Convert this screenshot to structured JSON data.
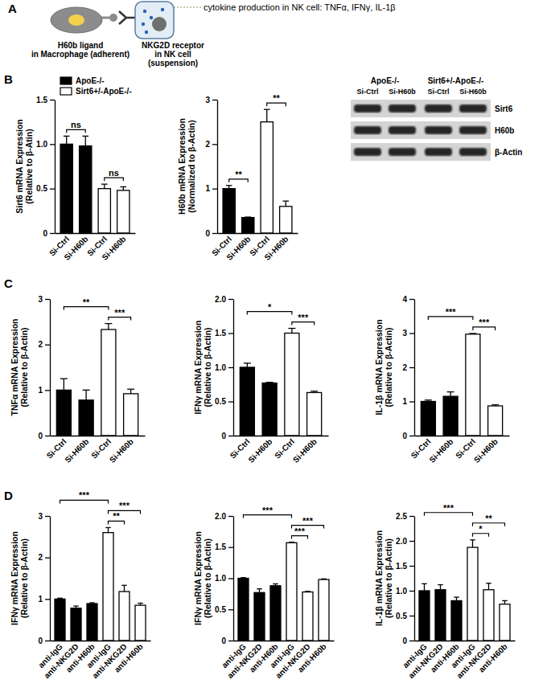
{
  "panel_labels": [
    "A",
    "B",
    "C",
    "D"
  ],
  "diagram": {
    "macrophage_label": [
      "H60b ligand",
      "in Macrophage (adherent)"
    ],
    "nk_label": [
      "NKG2D receptor",
      "in NK cell",
      "(suspension)"
    ],
    "cytokine_text": "cytokine production in NK cell: TNFα, IFNγ, IL-1β"
  },
  "legend_entries": [
    {
      "name": "ApoE-/-",
      "color": "#000000"
    },
    {
      "name": "Sirt6+/-ApoE-/-",
      "color": "#ffffff"
    }
  ],
  "blot": {
    "groups": [
      "ApoE-/-",
      "Sirt6+/-ApoE-/-"
    ],
    "lanes": [
      "Si-Ctrl",
      "Si-H60b",
      "Si-Ctrl",
      "Si-H60b"
    ],
    "rows": [
      "Sirt6",
      "H60b",
      "β-Actin"
    ]
  },
  "chart_data": [
    {
      "type": "bar",
      "y_label": [
        "Sirt6 mRNA Expression",
        "(Relative to β-Atin)"
      ],
      "categories": [
        "Si-Ctrl",
        "Si-H60b",
        "Si-Ctrl",
        "Si-H60b"
      ],
      "values": [
        1.0,
        0.98,
        0.5,
        0.48
      ],
      "errors": [
        0.09,
        0.11,
        0.05,
        0.04
      ],
      "colors": [
        "#000000",
        "#000000",
        "#ffffff",
        "#ffffff"
      ],
      "ylim": [
        0,
        1.5
      ],
      "yticks": [
        0,
        0.5,
        {
          "value": 1,
          "label": "1.0"
        },
        1.5
      ],
      "significance": [
        {
          "from": 0,
          "to": 1,
          "label": "ns"
        },
        {
          "from": 2,
          "to": 3,
          "label": "ns"
        }
      ]
    },
    {
      "type": "bar",
      "y_label": [
        "H60b mRNA Expression",
        "(Normalized to β-Actin)"
      ],
      "categories": [
        "Si-Ctrl",
        "Si-H60b",
        "Si-Ctrl",
        "Si-H60b"
      ],
      "values": [
        1.0,
        0.35,
        2.5,
        0.6
      ],
      "errors": [
        0.07,
        0.01,
        0.28,
        0.12
      ],
      "colors": [
        "#000000",
        "#000000",
        "#ffffff",
        "#ffffff"
      ],
      "ylim": [
        0,
        3
      ],
      "yticks": [
        0,
        1,
        2,
        3
      ],
      "significance": [
        {
          "from": 0,
          "to": 1,
          "label": "**"
        },
        {
          "from": 2,
          "to": 3,
          "label": "**"
        }
      ]
    },
    {
      "type": "bar",
      "y_label": [
        "TNFα mRNA Expression",
        "(Relative to β-Actin)"
      ],
      "categories": [
        "Si-Ctrl",
        "Si-H60b",
        "Si-Ctrl",
        "Si-H60b"
      ],
      "values": [
        1.0,
        0.78,
        2.33,
        0.92
      ],
      "errors": [
        0.25,
        0.22,
        0.13,
        0.1
      ],
      "colors": [
        "#000000",
        "#000000",
        "#ffffff",
        "#ffffff"
      ],
      "ylim": [
        0,
        3
      ],
      "yticks": [
        0,
        1,
        2,
        3
      ],
      "significance": [
        {
          "from": 0,
          "to": 2,
          "label": "**"
        },
        {
          "from": 2,
          "to": 3,
          "label": "***"
        }
      ]
    },
    {
      "type": "bar",
      "y_label": [
        "IFNγ mRNA Expression",
        "(Relative to β-Actin)"
      ],
      "categories": [
        "Si-Ctrl",
        "Si-H60b",
        "Si-Ctrl",
        "Si-H60b"
      ],
      "values": [
        1.0,
        0.77,
        1.5,
        0.63
      ],
      "errors": [
        0.06,
        0.01,
        0.07,
        0.02
      ],
      "colors": [
        "#000000",
        "#000000",
        "#ffffff",
        "#ffffff"
      ],
      "ylim": [
        0,
        2
      ],
      "yticks": [
        0,
        0.5,
        {
          "value": 1,
          "label": "1.0"
        },
        1.5,
        {
          "value": 2,
          "label": "2.0"
        }
      ],
      "significance": [
        {
          "from": 0,
          "to": 2,
          "label": "*"
        },
        {
          "from": 2,
          "to": 3,
          "label": "***"
        }
      ]
    },
    {
      "type": "bar",
      "y_label": [
        "IL-1β mRNA Expression",
        "(Relative to β-Actin)"
      ],
      "categories": [
        "Si-Ctrl",
        "Si-H60b",
        "Si-Ctrl",
        "Si-H60b"
      ],
      "values": [
        1.0,
        1.15,
        2.97,
        0.87
      ],
      "errors": [
        0.04,
        0.13,
        0.02,
        0.03
      ],
      "colors": [
        "#000000",
        "#000000",
        "#ffffff",
        "#ffffff"
      ],
      "ylim": [
        0,
        4
      ],
      "yticks": [
        0,
        1,
        2,
        3,
        4
      ],
      "significance": [
        {
          "from": 0,
          "to": 2,
          "label": "***"
        },
        {
          "from": 2,
          "to": 3,
          "label": "***"
        }
      ]
    },
    {
      "type": "bar",
      "y_label": [
        "IFNγ mRNA Expression",
        "(Relative to β-Actin)"
      ],
      "categories": [
        "anti-IgG",
        "anti-NKG2D",
        "anti-H60b",
        "anti-IgG",
        "anti-NKG2D",
        "anti-H60b"
      ],
      "values": [
        1.0,
        0.78,
        0.89,
        2.6,
        1.18,
        0.85
      ],
      "errors": [
        0.02,
        0.05,
        0.02,
        0.12,
        0.15,
        0.05
      ],
      "colors": [
        "#000000",
        "#000000",
        "#000000",
        "#ffffff",
        "#ffffff",
        "#ffffff"
      ],
      "ylim": [
        0,
        3
      ],
      "yticks": [
        0,
        1,
        2,
        3
      ],
      "significance": [
        {
          "from": 0,
          "to": 3,
          "label": "***"
        },
        {
          "from": 3,
          "to": 4,
          "label": "**"
        },
        {
          "from": 3,
          "to": 5,
          "label": "***"
        }
      ]
    },
    {
      "type": "bar",
      "y_label": [
        "IFNγ mRNA Expression",
        "(Relative to β-Actin)"
      ],
      "categories": [
        "anti-IgG",
        "anti-NKG2D",
        "anti-H60b",
        "anti-IgG",
        "anti-NKG2D",
        "anti-H60b"
      ],
      "values": [
        1.0,
        0.77,
        0.88,
        1.57,
        0.78,
        0.98
      ],
      "errors": [
        0.01,
        0.06,
        0.03,
        0.01,
        0.01,
        0.01
      ],
      "colors": [
        "#000000",
        "#000000",
        "#000000",
        "#ffffff",
        "#ffffff",
        "#ffffff"
      ],
      "ylim": [
        0,
        2
      ],
      "yticks": [
        0,
        0.5,
        {
          "value": 1,
          "label": "1.0"
        },
        1.5,
        {
          "value": 2,
          "label": "2.0"
        }
      ],
      "significance": [
        {
          "from": 0,
          "to": 3,
          "label": "***"
        },
        {
          "from": 3,
          "to": 4,
          "label": "***"
        },
        {
          "from": 3,
          "to": 5,
          "label": "***"
        }
      ]
    },
    {
      "type": "bar",
      "y_label": [
        "IL-1β mRNA Expression",
        "(Relative to β-Actin)"
      ],
      "categories": [
        "anti-IgG",
        "anti-NKG2D",
        "anti-H60b",
        "anti-IgG",
        "anti-NKG2D",
        "anti-H60b"
      ],
      "values": [
        1.0,
        1.02,
        0.8,
        1.87,
        1.02,
        0.73
      ],
      "errors": [
        0.14,
        0.1,
        0.07,
        0.15,
        0.13,
        0.07
      ],
      "colors": [
        "#000000",
        "#000000",
        "#000000",
        "#ffffff",
        "#ffffff",
        "#ffffff"
      ],
      "ylim": [
        0,
        2.5
      ],
      "yticks": [
        0,
        0.5,
        {
          "value": 1,
          "label": "1.0"
        },
        1.5,
        {
          "value": 2,
          "label": "2.0"
        },
        2.5
      ],
      "significance": [
        {
          "from": 0,
          "to": 3,
          "label": "***"
        },
        {
          "from": 3,
          "to": 4,
          "label": "*"
        },
        {
          "from": 3,
          "to": 5,
          "label": "**"
        }
      ]
    }
  ]
}
